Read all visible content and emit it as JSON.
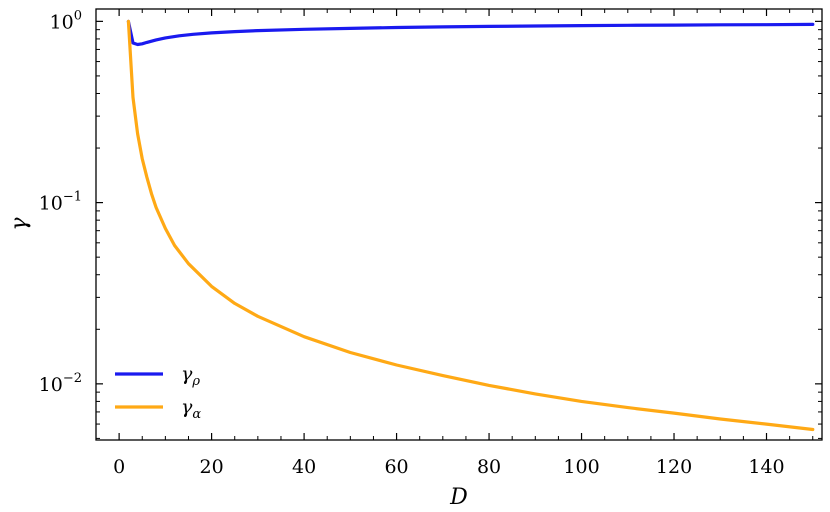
{
  "chart_data": {
    "type": "line",
    "xlabel": "D",
    "ylabel": "γ",
    "xlim": [
      -5,
      152
    ],
    "ylim": [
      0.0049,
      1.17
    ],
    "yscale": "log",
    "grid": false,
    "legend_position": "bottom-left",
    "x_ticks": [
      0,
      20,
      40,
      60,
      80,
      100,
      120,
      140
    ],
    "x_tick_labels": [
      "0",
      "20",
      "40",
      "60",
      "80",
      "100",
      "120",
      "140"
    ],
    "y_ticks": [
      {
        "value": 1,
        "base": "10",
        "exp": "0"
      },
      {
        "value": 0.1,
        "base": "10",
        "exp": "−1"
      },
      {
        "value": 0.01,
        "base": "10",
        "exp": "−2"
      }
    ],
    "series": [
      {
        "name": "γ_ρ",
        "legend_base": "γ",
        "legend_sub": "ρ",
        "color": "#1a1aef",
        "x": [
          2,
          3,
          4,
          5,
          6,
          8,
          10,
          13,
          16,
          20,
          25,
          30,
          40,
          50,
          60,
          70,
          80,
          90,
          100,
          110,
          120,
          130,
          140,
          150
        ],
        "y": [
          1.0,
          0.76,
          0.745,
          0.752,
          0.765,
          0.79,
          0.81,
          0.832,
          0.848,
          0.864,
          0.878,
          0.889,
          0.904,
          0.915,
          0.925,
          0.932,
          0.938,
          0.943,
          0.947,
          0.951,
          0.954,
          0.957,
          0.959,
          0.962
        ]
      },
      {
        "name": "γ_α",
        "legend_base": "γ",
        "legend_sub": "α",
        "color": "#ffa915",
        "x": [
          2,
          3,
          4,
          5,
          6,
          7,
          8,
          10,
          12,
          15,
          20,
          25,
          30,
          40,
          50,
          60,
          70,
          80,
          90,
          100,
          110,
          120,
          130,
          140,
          150
        ],
        "y": [
          1.0,
          0.38,
          0.24,
          0.175,
          0.138,
          0.112,
          0.094,
          0.072,
          0.058,
          0.046,
          0.0345,
          0.0278,
          0.0236,
          0.0182,
          0.0149,
          0.0127,
          0.0111,
          0.0098,
          0.0088,
          0.008,
          0.0074,
          0.0069,
          0.0064,
          0.006,
          0.0056
        ]
      }
    ]
  }
}
